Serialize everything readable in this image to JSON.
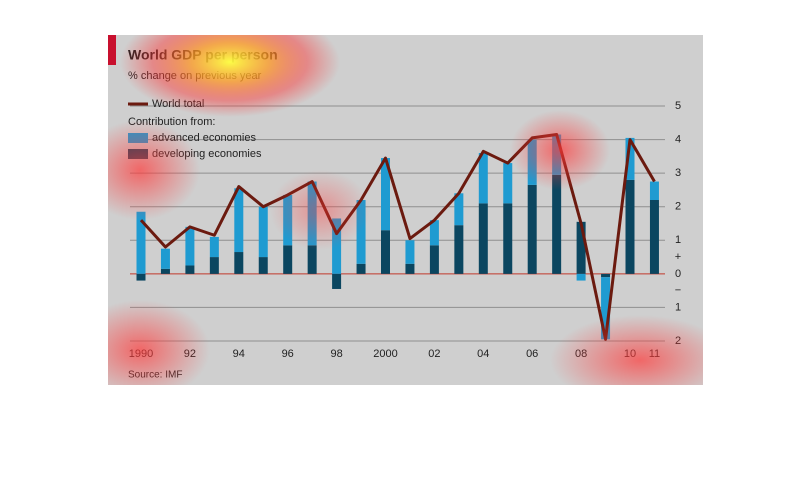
{
  "chart_data": {
    "type": "stacked_bar_line",
    "title": "World GDP per person",
    "subtitle": "% change on previous year",
    "source": "Source: IMF",
    "legend_heading": "Contribution from:",
    "categories": [
      "1990",
      null,
      "92",
      null,
      "94",
      null,
      "96",
      null,
      "98",
      null,
      "2000",
      null,
      "02",
      null,
      "04",
      null,
      "06",
      null,
      "08",
      null,
      "10",
      "11"
    ],
    "series": [
      {
        "name": "developing economies",
        "color": "#0b4660",
        "values": [
          -0.2,
          0.15,
          0.25,
          0.5,
          0.65,
          0.5,
          0.85,
          0.85,
          -0.45,
          0.3,
          1.3,
          0.3,
          0.85,
          1.45,
          2.1,
          2.1,
          2.65,
          2.95,
          1.55,
          -0.1,
          2.8,
          2.2
        ]
      },
      {
        "name": "advanced economies",
        "color": "#1f9bd1",
        "values": [
          1.85,
          0.6,
          1.15,
          0.6,
          1.9,
          1.5,
          1.5,
          1.9,
          1.65,
          1.9,
          2.15,
          0.7,
          0.75,
          0.95,
          1.5,
          1.2,
          1.35,
          1.2,
          -0.2,
          -1.85,
          1.25,
          0.55
        ]
      }
    ],
    "line": {
      "name": "World total",
      "color": "#6b1a0f",
      "values": [
        1.6,
        0.8,
        1.4,
        1.15,
        2.6,
        2.0,
        2.35,
        2.75,
        1.2,
        2.2,
        3.45,
        1.05,
        1.6,
        2.4,
        3.65,
        3.3,
        4.05,
        4.15,
        1.5,
        -1.95,
        4.0,
        2.75
      ]
    },
    "ylim": [
      -2,
      5
    ],
    "yticks": [
      {
        "value": -2,
        "label": "2"
      },
      {
        "value": -1,
        "label": "1"
      },
      0,
      1,
      2,
      3,
      4,
      5
    ],
    "sign_labels": {
      "above": "+",
      "below": "−"
    },
    "grid": true
  }
}
